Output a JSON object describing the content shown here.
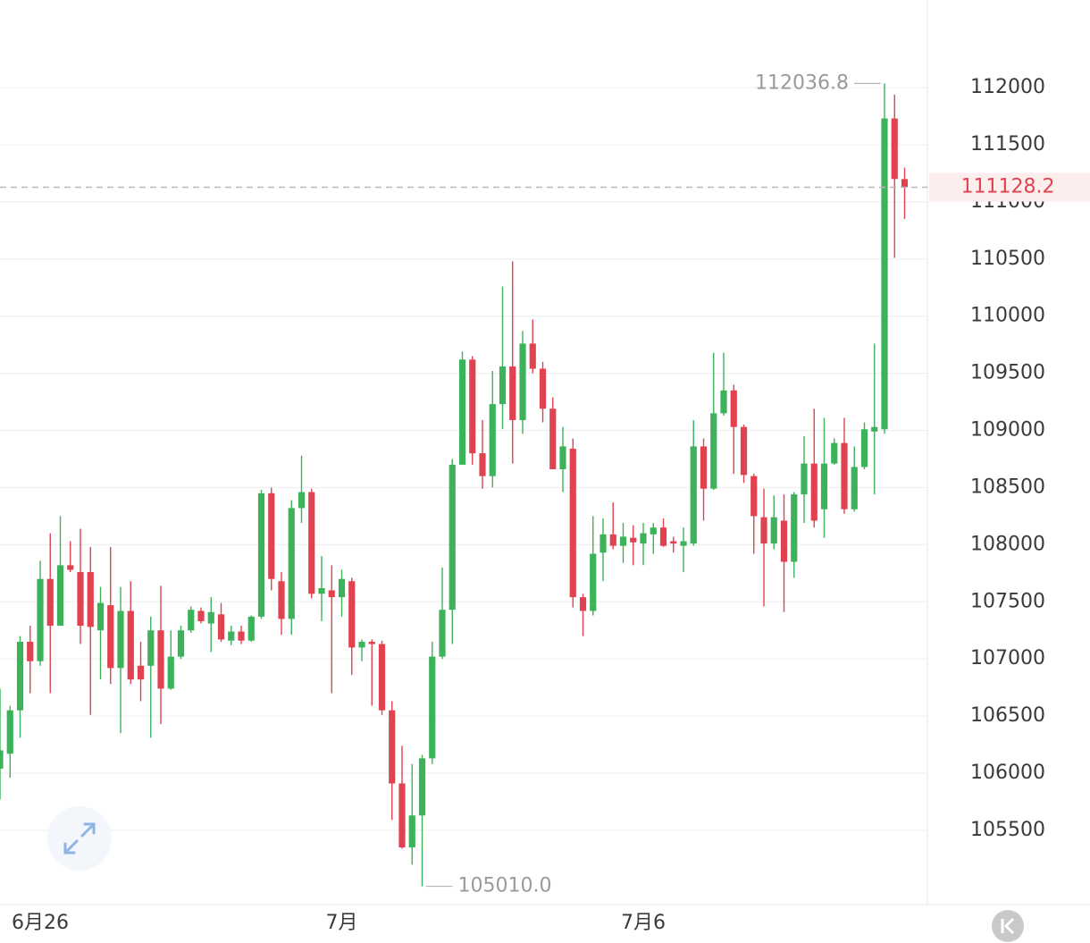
{
  "chart_data": {
    "type": "candlestick",
    "categories": [
      null,
      null,
      null,
      null,
      "6月26",
      null,
      null,
      null,
      null,
      null,
      null,
      null,
      null,
      null,
      null,
      null,
      null,
      null,
      null,
      null,
      null,
      null,
      null,
      null,
      null,
      null,
      null,
      null,
      null,
      null,
      null,
      null,
      null,
      null,
      "7月",
      null,
      null,
      null,
      null,
      null,
      null,
      null,
      null,
      null,
      null,
      null,
      null,
      null,
      null,
      null,
      null,
      null,
      null,
      null,
      null,
      null,
      null,
      null,
      null,
      null,
      null,
      null,
      null,
      null,
      "7月6",
      null,
      null,
      null,
      null,
      null,
      null,
      null,
      null,
      null,
      null,
      null,
      null,
      null,
      null,
      null,
      null,
      null,
      null,
      null,
      null,
      null,
      null,
      null,
      null,
      null,
      null
    ],
    "open": [
      106040,
      106170,
      106550,
      107150,
      106980,
      107700,
      107290,
      107820,
      107760,
      107760,
      107250,
      107470,
      106920,
      107420,
      106940,
      106940,
      107250,
      106740,
      107020,
      107250,
      107420,
      107310,
      107390,
      107160,
      107240,
      107160,
      107370,
      108450,
      107680,
      107350,
      108320,
      108460,
      107570,
      107600,
      107540,
      107680,
      107100,
      107150,
      107130,
      106550,
      105910,
      105350,
      105630,
      106130,
      107020,
      107430,
      108700,
      109620,
      108800,
      108600,
      109230,
      109560,
      109090,
      109760,
      109540,
      109190,
      108660,
      108840,
      107540,
      107420,
      107930,
      108090,
      107990,
      108060,
      108010,
      108090,
      108150,
      108030,
      107990,
      108010,
      108860,
      108490,
      109150,
      109350,
      109030,
      108600,
      108240,
      108010,
      108210,
      107850,
      108440,
      108710,
      108310,
      108710,
      108890,
      108310,
      108680,
      108990,
      109010,
      111730,
      111200
    ],
    "high": [
      106740,
      106590,
      107200,
      107290,
      107860,
      108100,
      108250,
      108030,
      108140,
      107980,
      107630,
      107980,
      107630,
      107680,
      107150,
      107370,
      107640,
      107250,
      107290,
      107460,
      107450,
      107540,
      107490,
      107290,
      107290,
      107380,
      108480,
      108500,
      107760,
      108390,
      108780,
      108490,
      107900,
      107820,
      107780,
      107710,
      107170,
      107170,
      107160,
      106630,
      106240,
      106080,
      106160,
      107150,
      107800,
      108750,
      109690,
      109650,
      109090,
      109520,
      110260,
      110480,
      109870,
      109970,
      109600,
      109290,
      109030,
      108930,
      107570,
      108250,
      108230,
      108370,
      108190,
      108170,
      108190,
      108190,
      108230,
      108070,
      108150,
      109090,
      108930,
      109680,
      109680,
      109400,
      109050,
      108620,
      108490,
      108430,
      108440,
      108460,
      108950,
      109190,
      109110,
      108930,
      109110,
      108860,
      109070,
      109760,
      112036.8,
      111940,
      111300
    ],
    "low": [
      105770,
      105960,
      106310,
      106700,
      106940,
      106700,
      107290,
      107760,
      107130,
      106510,
      106820,
      106780,
      106350,
      106780,
      106630,
      106310,
      106430,
      106730,
      107000,
      107230,
      107310,
      107060,
      107150,
      107120,
      107130,
      107150,
      107350,
      107600,
      107210,
      107210,
      108190,
      107530,
      107330,
      106700,
      107370,
      106860,
      106980,
      106590,
      106510,
      105590,
      105340,
      105200,
      105010,
      106080,
      107000,
      107130,
      108700,
      108700,
      108490,
      108500,
      109010,
      108710,
      108970,
      109500,
      109070,
      108660,
      108460,
      107450,
      107200,
      107380,
      107680,
      107960,
      107840,
      107820,
      107820,
      107920,
      107980,
      107930,
      107760,
      107990,
      108210,
      108480,
      109130,
      108620,
      108540,
      107920,
      107460,
      107960,
      107410,
      107710,
      108190,
      108150,
      108060,
      108700,
      108270,
      108290,
      108660,
      108440,
      108970,
      110510,
      110850
    ],
    "close": [
      106200,
      106550,
      107150,
      106980,
      107700,
      107290,
      107820,
      107780,
      107290,
      107280,
      107490,
      106920,
      107420,
      106820,
      106820,
      107250,
      106740,
      107020,
      107250,
      107430,
      107330,
      107410,
      107170,
      107240,
      107160,
      107370,
      108450,
      107700,
      107350,
      108320,
      108460,
      107570,
      107620,
      107540,
      107700,
      107100,
      107150,
      107130,
      106550,
      105910,
      105350,
      105630,
      106130,
      107020,
      107430,
      108700,
      109620,
      108800,
      108600,
      109230,
      109560,
      109090,
      109760,
      109540,
      109190,
      108660,
      108860,
      107540,
      107420,
      107920,
      108090,
      107990,
      108070,
      108020,
      108100,
      108150,
      107990,
      108010,
      108030,
      108860,
      108490,
      109150,
      109350,
      109030,
      108610,
      108250,
      108010,
      108240,
      107850,
      108440,
      108710,
      108210,
      108710,
      108890,
      108310,
      108680,
      109010,
      109030,
      111730,
      111200,
      111128.2
    ],
    "up_color": "#3cb35a",
    "down_color": "#e0434f",
    "annotations": [
      {
        "value": 105010,
        "label": "105010.0"
      }
    ],
    "ylim": [
      104850,
      112767
    ],
    "yticks": [
      105500,
      106000,
      106500,
      107000,
      107500,
      108000,
      108500,
      109000,
      109500,
      110000,
      110500,
      111000,
      111500,
      112000
    ],
    "grid": true
  }
}
